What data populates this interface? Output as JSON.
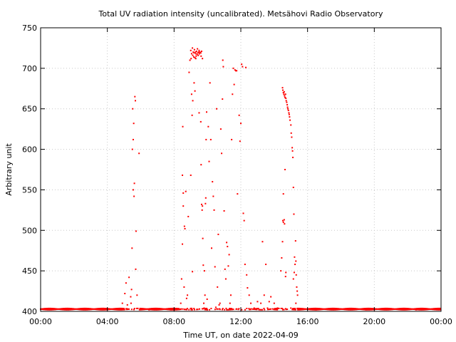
{
  "chart_data": {
    "type": "scatter",
    "title": "Total UV radiation intensity (uncalibrated). Metsähovi Radio Observatory",
    "xlabel": "Time UT, on date 2022-04-09",
    "ylabel": "Arbitrary unit",
    "x_unit": "hours UT",
    "xlim": [
      0,
      24
    ],
    "ylim": [
      400,
      750
    ],
    "xticks": [
      {
        "value": 0,
        "label": "00:00"
      },
      {
        "value": 4,
        "label": "04:00"
      },
      {
        "value": 8,
        "label": "08:00"
      },
      {
        "value": 12,
        "label": "12:00"
      },
      {
        "value": 16,
        "label": "16:00"
      },
      {
        "value": 20,
        "label": "20:00"
      },
      {
        "value": 24,
        "label": "00:00"
      }
    ],
    "yticks": [
      400,
      450,
      500,
      550,
      600,
      650,
      700,
      750
    ],
    "grid": true,
    "point_color": "#ff0000",
    "baseline_value": 402,
    "series": [
      {
        "points": [
          [
            5.05,
            422
          ],
          [
            5.12,
            435
          ],
          [
            5.2,
            408
          ],
          [
            5.3,
            442
          ],
          [
            5.4,
            418
          ],
          [
            5.45,
            427
          ],
          [
            5.48,
            478
          ],
          [
            5.5,
            600
          ],
          [
            5.52,
            650
          ],
          [
            5.55,
            612
          ],
          [
            5.58,
            632
          ],
          [
            5.6,
            542
          ],
          [
            5.62,
            558
          ],
          [
            5.65,
            665
          ],
          [
            5.68,
            660
          ],
          [
            5.7,
            452
          ],
          [
            5.72,
            499
          ],
          [
            5.78,
            420
          ],
          [
            5.9,
            595
          ],
          [
            5.55,
            550
          ],
          [
            5.42,
            410
          ],
          [
            8.4,
            410
          ],
          [
            8.45,
            440
          ],
          [
            8.5,
            568
          ],
          [
            8.52,
            628
          ],
          [
            8.55,
            546
          ],
          [
            8.6,
            430
          ],
          [
            8.62,
            505
          ],
          [
            8.65,
            502
          ],
          [
            8.7,
            548
          ],
          [
            8.75,
            416
          ],
          [
            8.8,
            420
          ],
          [
            8.85,
            517
          ],
          [
            8.5,
            483
          ],
          [
            8.55,
            530
          ],
          [
            8.9,
            695
          ],
          [
            8.95,
            710
          ],
          [
            9.0,
            722
          ],
          [
            9.02,
            712
          ],
          [
            9.05,
            718
          ],
          [
            9.1,
            725
          ],
          [
            9.12,
            716
          ],
          [
            9.15,
            720
          ],
          [
            9.18,
            714
          ],
          [
            9.2,
            719
          ],
          [
            9.22,
            723
          ],
          [
            9.25,
            713
          ],
          [
            9.28,
            720
          ],
          [
            9.3,
            718
          ],
          [
            9.32,
            715
          ],
          [
            9.35,
            721
          ],
          [
            9.38,
            717
          ],
          [
            9.4,
            724
          ],
          [
            9.42,
            719
          ],
          [
            9.45,
            716
          ],
          [
            9.48,
            720
          ],
          [
            9.5,
            722
          ],
          [
            9.52,
            718
          ],
          [
            9.55,
            720
          ],
          [
            9.6,
            719
          ],
          [
            9.62,
            715
          ],
          [
            9.65,
            721
          ],
          [
            9.7,
            712
          ],
          [
            9.0,
            568
          ],
          [
            9.05,
            668
          ],
          [
            9.08,
            642
          ],
          [
            9.1,
            449
          ],
          [
            9.12,
            660
          ],
          [
            9.2,
            682
          ],
          [
            9.25,
            672
          ],
          [
            9.3,
            712
          ],
          [
            9.5,
            645
          ],
          [
            9.6,
            634
          ],
          [
            9.62,
            581
          ],
          [
            9.65,
            532
          ],
          [
            9.68,
            525
          ],
          [
            9.7,
            530
          ],
          [
            9.72,
            490
          ],
          [
            9.75,
            457
          ],
          [
            9.78,
            410
          ],
          [
            9.8,
            404
          ],
          [
            9.82,
            450
          ],
          [
            9.85,
            420
          ],
          [
            9.88,
            533
          ],
          [
            9.9,
            540
          ],
          [
            9.92,
            612
          ],
          [
            9.95,
            646
          ],
          [
            9.98,
            415
          ],
          [
            10.0,
            402
          ],
          [
            10.05,
            628
          ],
          [
            10.1,
            585
          ],
          [
            10.15,
            682
          ],
          [
            10.2,
            612
          ],
          [
            10.25,
            478
          ],
          [
            10.3,
            560
          ],
          [
            10.35,
            542
          ],
          [
            10.4,
            525
          ],
          [
            10.45,
            455
          ],
          [
            10.5,
            405
          ],
          [
            10.55,
            650
          ],
          [
            10.6,
            430
          ],
          [
            10.65,
            495
          ],
          [
            10.7,
            408
          ],
          [
            10.75,
            410
          ],
          [
            10.8,
            625
          ],
          [
            10.85,
            595
          ],
          [
            10.9,
            662
          ],
          [
            10.92,
            710
          ],
          [
            10.95,
            702
          ],
          [
            11.0,
            524
          ],
          [
            11.05,
            452
          ],
          [
            11.1,
            440
          ],
          [
            11.15,
            485
          ],
          [
            11.2,
            480
          ],
          [
            11.25,
            456
          ],
          [
            11.3,
            470
          ],
          [
            11.35,
            410
          ],
          [
            11.4,
            420
          ],
          [
            11.45,
            612
          ],
          [
            11.5,
            668
          ],
          [
            11.55,
            700
          ],
          [
            11.6,
            680
          ],
          [
            11.65,
            698
          ],
          [
            11.7,
            697
          ],
          [
            11.75,
            697
          ],
          [
            11.8,
            545
          ],
          [
            11.9,
            642
          ],
          [
            11.95,
            610
          ],
          [
            12.0,
            632
          ],
          [
            12.05,
            705
          ],
          [
            12.1,
            702
          ],
          [
            12.15,
            521
          ],
          [
            12.2,
            512
          ],
          [
            12.25,
            458
          ],
          [
            12.3,
            701
          ],
          [
            12.35,
            445
          ],
          [
            12.4,
            429
          ],
          [
            12.5,
            420
          ],
          [
            12.6,
            410
          ],
          [
            12.8,
            404
          ],
          [
            13.0,
            412
          ],
          [
            13.2,
            410
          ],
          [
            13.3,
            486
          ],
          [
            13.4,
            420
          ],
          [
            13.5,
            458
          ],
          [
            13.6,
            404
          ],
          [
            13.7,
            412
          ],
          [
            13.8,
            418
          ],
          [
            14.0,
            410
          ],
          [
            14.2,
            404
          ],
          [
            14.4,
            450
          ],
          [
            14.45,
            466
          ],
          [
            14.5,
            486
          ],
          [
            14.52,
            512
          ],
          [
            14.55,
            510
          ],
          [
            14.6,
            513
          ],
          [
            14.62,
            508
          ],
          [
            14.65,
            575
          ],
          [
            14.68,
            443
          ],
          [
            14.7,
            448
          ],
          [
            14.55,
            545
          ],
          [
            14.5,
            676
          ],
          [
            14.52,
            673
          ],
          [
            14.55,
            670
          ],
          [
            14.58,
            668
          ],
          [
            14.6,
            671
          ],
          [
            14.62,
            666
          ],
          [
            14.65,
            664
          ],
          [
            14.68,
            668
          ],
          [
            14.7,
            663
          ],
          [
            14.72,
            660
          ],
          [
            14.75,
            658
          ],
          [
            14.78,
            655
          ],
          [
            14.8,
            652
          ],
          [
            14.82,
            650
          ],
          [
            14.85,
            648
          ],
          [
            14.88,
            645
          ],
          [
            14.9,
            643
          ],
          [
            14.92,
            640
          ],
          [
            14.95,
            636
          ],
          [
            15.0,
            630
          ],
          [
            15.02,
            620
          ],
          [
            15.05,
            615
          ],
          [
            15.08,
            602
          ],
          [
            15.1,
            598
          ],
          [
            15.12,
            590
          ],
          [
            15.15,
            553
          ],
          [
            15.18,
            520
          ],
          [
            15.2,
            448
          ],
          [
            15.22,
            467
          ],
          [
            15.25,
            458
          ],
          [
            15.28,
            487
          ],
          [
            15.3,
            462
          ],
          [
            15.32,
            445
          ],
          [
            15.35,
            430
          ],
          [
            15.38,
            425
          ],
          [
            15.4,
            420
          ],
          [
            15.15,
            440
          ],
          [
            15.0,
            404
          ],
          [
            15.3,
            410
          ],
          [
            4.9,
            410
          ],
          [
            6.5,
            402
          ],
          [
            7.2,
            403
          ],
          [
            7.8,
            402
          ],
          [
            8.2,
            403
          ],
          [
            12.9,
            403
          ],
          [
            13.9,
            403
          ],
          [
            16.5,
            402
          ],
          [
            18.0,
            403
          ],
          [
            19.5,
            402
          ],
          [
            21.0,
            403
          ],
          [
            22.5,
            402
          ],
          [
            23.8,
            403
          ]
        ]
      }
    ]
  }
}
